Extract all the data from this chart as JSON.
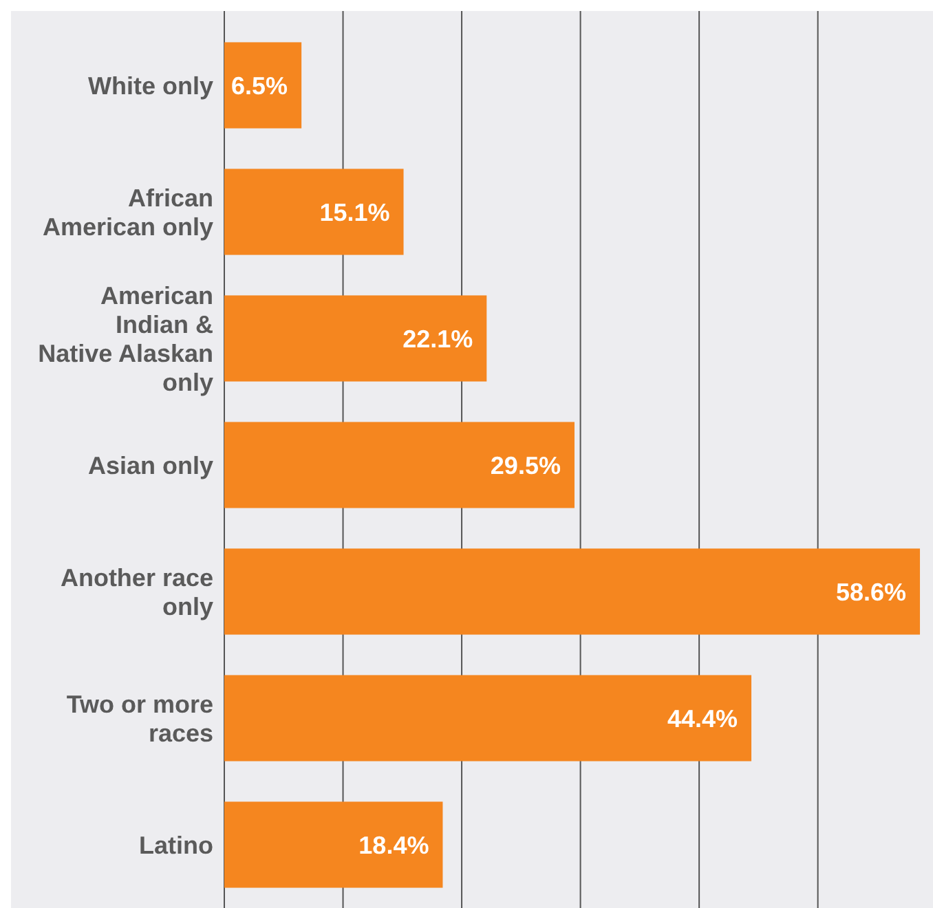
{
  "chart_data": {
    "type": "bar",
    "orientation": "horizontal",
    "categories": [
      "White only",
      "African American only",
      "American Indian & Native Alaskan only",
      "Asian only",
      "Another race only",
      "Two or more races",
      "Latino"
    ],
    "values": [
      6.5,
      15.1,
      22.1,
      29.5,
      58.6,
      44.4,
      18.4
    ],
    "value_labels": [
      "6.5%",
      "15.1%",
      "22.1%",
      "29.5%",
      "58.6%",
      "44.4%",
      "18.4%"
    ],
    "color": "#f5861f",
    "xlim": [
      0,
      59.7
    ],
    "xticks": [
      {
        "value": 0,
        "label": null
      },
      {
        "value": 10,
        "label": null
      },
      {
        "value": 20,
        "label": null
      },
      {
        "value": 30,
        "label": null
      },
      {
        "value": 40,
        "label": null
      },
      {
        "value": 50,
        "label": null
      }
    ],
    "grid": "x",
    "tick_labels": "y"
  }
}
